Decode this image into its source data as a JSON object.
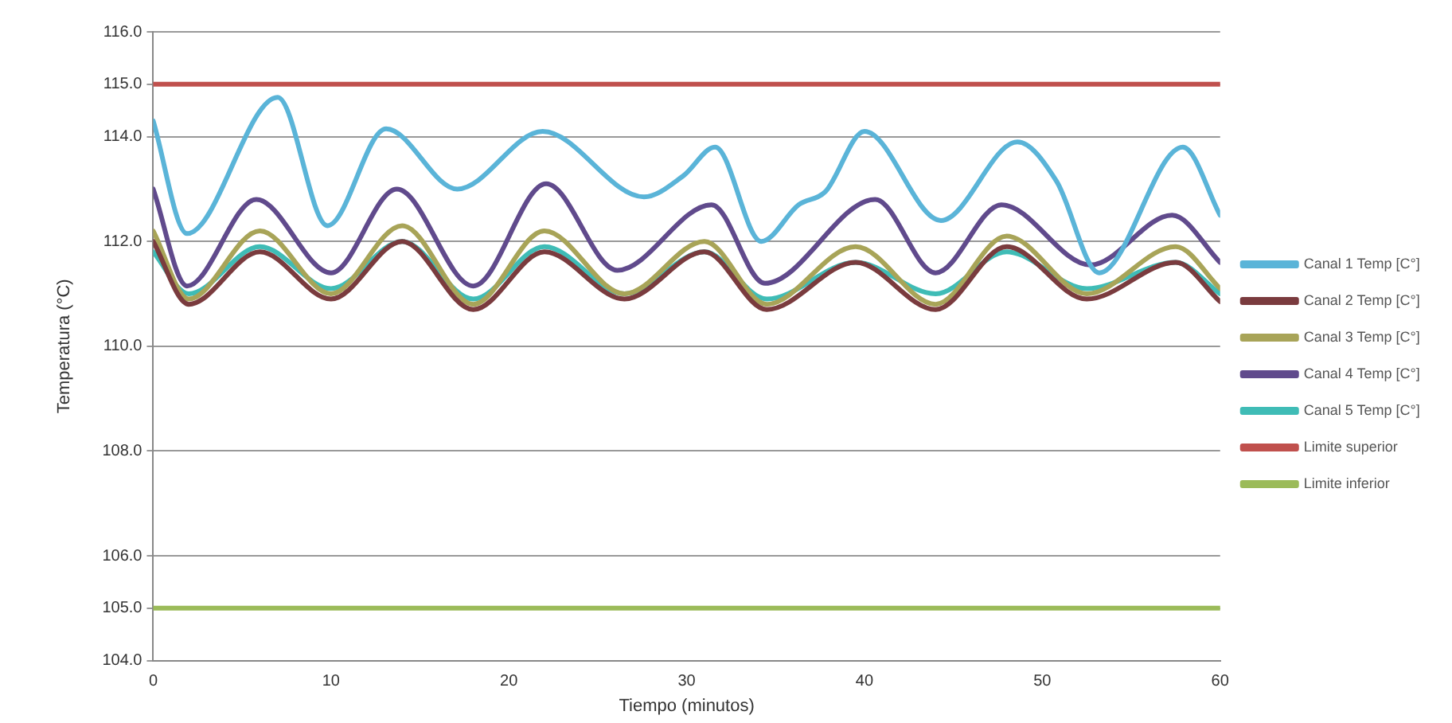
{
  "chart_data": {
    "type": "line",
    "xlabel": "Tiempo (minutos)",
    "ylabel": "Temperatura (°C)",
    "xlim": [
      0,
      60
    ],
    "xticks": [
      0,
      10,
      20,
      30,
      40,
      50,
      60
    ],
    "ylim": [
      104,
      116
    ],
    "yticks": [
      {
        "value": 104,
        "label": "104.0"
      },
      {
        "value": 105,
        "label": "105.0"
      },
      {
        "value": 106,
        "label": "106.0"
      },
      {
        "value": 108,
        "label": "108.0"
      },
      {
        "value": 110,
        "label": "110.0"
      },
      {
        "value": 112,
        "label": "112.0"
      },
      {
        "value": 114,
        "label": "114.0"
      },
      {
        "value": 115,
        "label": "115.0"
      },
      {
        "value": 116,
        "label": "116.0"
      }
    ],
    "grid": "y",
    "legend": "right",
    "marker": "none",
    "line_style": "solid",
    "series": [
      {
        "name": "Canal 1 Temp [C°]",
        "color": "#5ab4d8",
        "x": [
          0,
          1.9,
          7,
          9.8,
          13.1,
          17.1,
          21.9,
          27.6,
          29.8,
          31.6,
          34.2,
          36.3,
          37.8,
          40,
          44.3,
          48.6,
          50.8,
          53.2,
          57.9,
          60
        ],
        "values": [
          114.3,
          112.15,
          114.75,
          112.3,
          114.15,
          113.0,
          114.1,
          112.85,
          113.25,
          113.8,
          112.0,
          112.7,
          112.95,
          114.1,
          112.4,
          113.9,
          113.15,
          111.4,
          113.8,
          112.5
        ]
      },
      {
        "name": "Canal 2 Temp [C°]",
        "color": "#7a3b3e",
        "x": [
          0,
          2,
          6,
          10,
          14,
          18,
          22,
          26.5,
          31,
          34.5,
          39.5,
          44,
          48,
          52.5,
          57.5,
          60
        ],
        "values": [
          112.0,
          110.8,
          111.8,
          110.9,
          112.0,
          110.7,
          111.8,
          110.9,
          111.8,
          110.7,
          111.6,
          110.7,
          111.9,
          110.9,
          111.6,
          110.85
        ]
      },
      {
        "name": "Canal 3 Temp [C°]",
        "color": "#a8a458",
        "x": [
          0,
          2,
          6,
          10,
          14,
          18,
          22,
          26.5,
          31,
          34.5,
          39.5,
          44,
          48,
          52.5,
          57.5,
          60
        ],
        "values": [
          112.2,
          110.9,
          112.2,
          111.0,
          112.3,
          110.8,
          112.2,
          111.0,
          112.0,
          110.8,
          111.9,
          110.8,
          112.1,
          111.0,
          111.9,
          111.1
        ]
      },
      {
        "name": "Canal 4 Temp [C°]",
        "color": "#604a8c",
        "x": [
          0,
          1.9,
          5.8,
          10,
          13.7,
          18,
          22.1,
          26.1,
          31.4,
          34.4,
          40.6,
          44,
          47.7,
          52.7,
          57.3,
          60
        ],
        "values": [
          113.0,
          111.15,
          112.8,
          111.4,
          113.0,
          111.15,
          113.1,
          111.45,
          112.7,
          111.2,
          112.8,
          111.4,
          112.7,
          111.55,
          112.5,
          111.6
        ]
      },
      {
        "name": "Canal 5 Temp [C°]",
        "color": "#3fbcb6",
        "x": [
          0,
          2,
          6,
          10,
          14,
          18,
          22,
          26.5,
          31,
          34.5,
          39.5,
          44,
          48,
          52.5,
          57.5,
          60
        ],
        "values": [
          111.8,
          111.0,
          111.9,
          111.1,
          112.0,
          110.9,
          111.9,
          111.0,
          111.8,
          110.9,
          111.6,
          111.0,
          111.8,
          111.1,
          111.6,
          111.0
        ]
      },
      {
        "name": "Limite superior",
        "color": "#c0504d",
        "x": [
          0,
          60
        ],
        "values": [
          115,
          115
        ]
      },
      {
        "name": "Limite inferior",
        "color": "#9bbb59",
        "x": [
          0,
          60
        ],
        "values": [
          105,
          105
        ]
      }
    ]
  }
}
